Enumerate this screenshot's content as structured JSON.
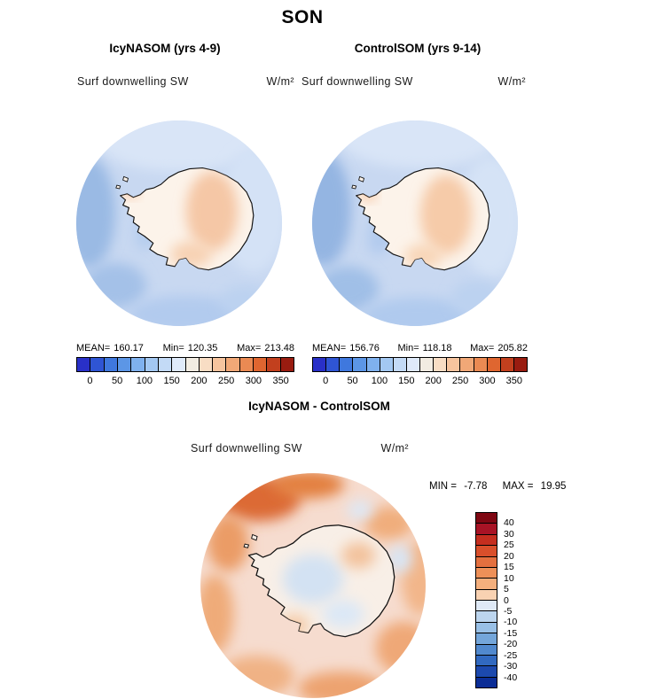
{
  "title": "SON",
  "panels": {
    "left": {
      "title": "IcyNASOM (yrs 4-9)",
      "field_label": "Surf downwelling SW",
      "units": "W/m²",
      "stats": [
        {
          "label": "MEAN=",
          "value": "160.17"
        },
        {
          "label": "Min=",
          "value": "120.35"
        },
        {
          "label": "Max=",
          "value": "213.48"
        }
      ]
    },
    "right": {
      "title": "ControlSOM (yrs 9-14)",
      "field_label": "Surf downwelling SW",
      "units": "W/m²",
      "stats": [
        {
          "label": "MEAN=",
          "value": "156.76"
        },
        {
          "label": "Min=",
          "value": "118.18"
        },
        {
          "label": "Max=",
          "value": "205.82"
        }
      ]
    }
  },
  "diff": {
    "title": "IcyNASOM - ControlSOM",
    "field_label": "Surf downwelling SW",
    "units": "W/m²",
    "min_label": "MIN =",
    "min_value": "-7.78",
    "max_label": "MAX =",
    "max_value": "19.95"
  },
  "chart_data": [
    {
      "type": "heatmap",
      "subtype": "polar_stereographic_map",
      "season": "SON",
      "title": "IcyNASOM (yrs 4-9)",
      "variable": "Surf downwelling SW",
      "units": "W/m²",
      "stats": {
        "mean": 160.17,
        "min": 120.35,
        "max": 213.48
      },
      "colorbar": {
        "orientation": "horizontal",
        "ticks": [
          0,
          50,
          100,
          150,
          200,
          250,
          300,
          350
        ],
        "interval_per_cell": 25,
        "colors": [
          "#2930c8",
          "#2f55d4",
          "#3f78de",
          "#5c96e6",
          "#7fb1ee",
          "#a3c8f2",
          "#c3daf6",
          "#dfeafa",
          "#f2ece2",
          "#f8ddc4",
          "#f6c49e",
          "#f1a877",
          "#ea8a53",
          "#df6630",
          "#c2401e",
          "#991c10"
        ]
      }
    },
    {
      "type": "heatmap",
      "subtype": "polar_stereographic_map",
      "season": "SON",
      "title": "ControlSOM (yrs 9-14)",
      "variable": "Surf downwelling SW",
      "units": "W/m²",
      "stats": {
        "mean": 156.76,
        "min": 118.18,
        "max": 205.82
      },
      "colorbar": {
        "orientation": "horizontal",
        "ticks": [
          0,
          50,
          100,
          150,
          200,
          250,
          300,
          350
        ],
        "interval_per_cell": 25,
        "colors": [
          "#2930c8",
          "#2f55d4",
          "#3f78de",
          "#5c96e6",
          "#7fb1ee",
          "#a3c8f2",
          "#c3daf6",
          "#dfeafa",
          "#f2ece2",
          "#f8ddc4",
          "#f6c49e",
          "#f1a877",
          "#ea8a53",
          "#df6630",
          "#c2401e",
          "#991c10"
        ]
      }
    },
    {
      "type": "heatmap",
      "subtype": "polar_stereographic_map",
      "season": "SON",
      "title": "IcyNASOM - ControlSOM",
      "variable": "Surf downwelling SW",
      "units": "W/m²",
      "stats": {
        "min": -7.78,
        "max": 19.95
      },
      "colorbar": {
        "orientation": "vertical",
        "ticks": [
          40,
          30,
          25,
          20,
          15,
          10,
          5,
          0,
          -5,
          -10,
          -15,
          -20,
          -25,
          -30,
          -40
        ],
        "colors": [
          "#7f0712",
          "#a81325",
          "#c52e1f",
          "#d94f2b",
          "#e4703f",
          "#ee9058",
          "#f4af7d",
          "#f9d2b2",
          "#dfe9f6",
          "#bcd5ee",
          "#99c0e6",
          "#74a6da",
          "#5189ce",
          "#3169c0",
          "#1c49ae",
          "#0b2d96"
        ]
      }
    }
  ]
}
